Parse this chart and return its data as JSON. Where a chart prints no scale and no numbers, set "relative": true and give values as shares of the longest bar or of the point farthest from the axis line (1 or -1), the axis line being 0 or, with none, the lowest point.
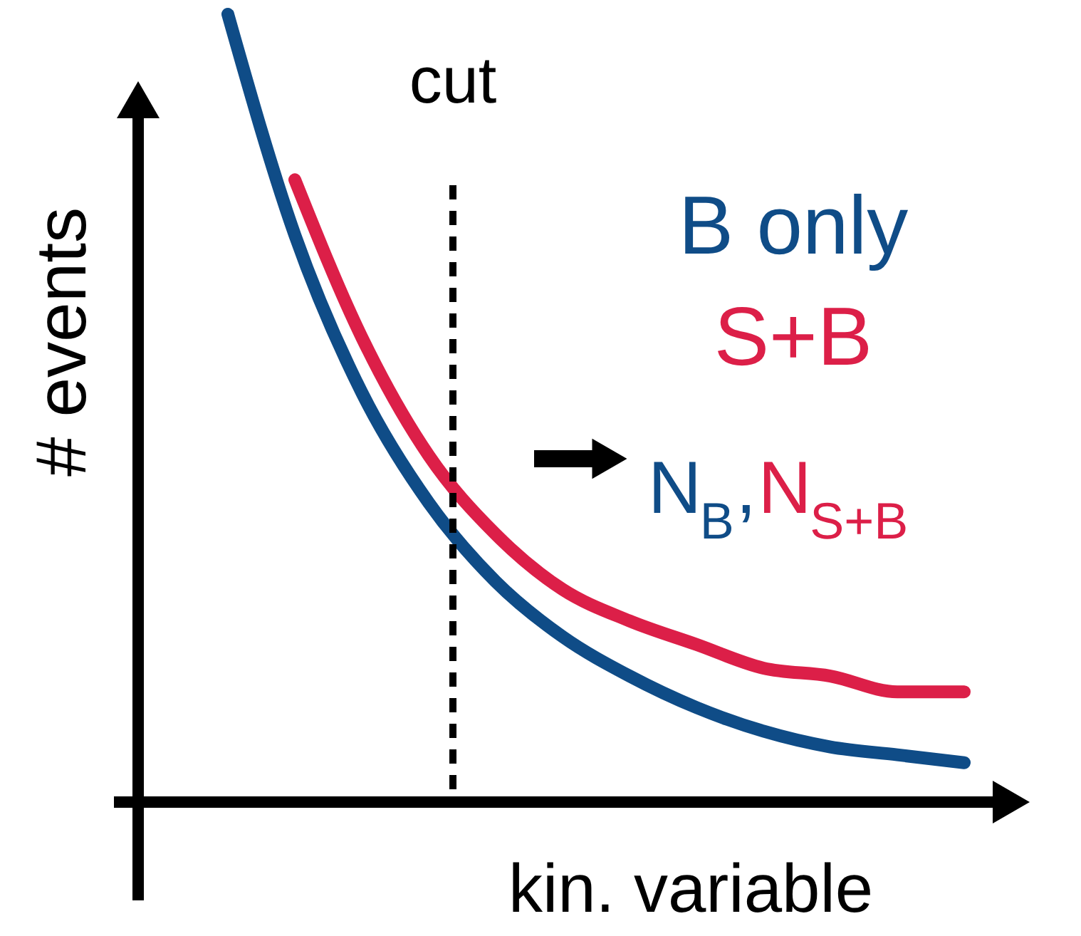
{
  "chart_data": {
    "type": "line",
    "relative": true,
    "xlabel": "kin. variable",
    "ylabel": "# events",
    "categories": [
      null,
      null,
      null,
      null,
      null,
      null,
      null,
      null,
      null,
      null,
      null,
      null
    ],
    "series": [
      {
        "name": "B only",
        "color": "#0f4c87",
        "values": [
          1,
          0.72,
          0.52,
          0.38,
          0.28,
          0.21,
          0.16,
          0.12,
          0.09,
          0.07,
          0.06,
          0.05
        ]
      },
      {
        "name": "S+B",
        "color": "#dc1f48",
        "values": [
          null,
          0.79,
          0.59,
          0.44,
          0.34,
          0.27,
          0.23,
          0.2,
          0.17,
          0.16,
          0.14,
          0.14
        ]
      }
    ],
    "annotations": [
      "cut",
      "N$_{B}$,N$_{S+B}$"
    ]
  }
}
